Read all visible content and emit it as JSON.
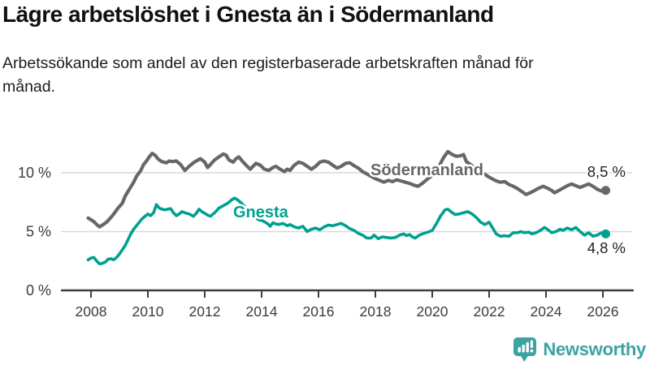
{
  "header": {
    "title": "Lägre arbetslöshet i Gnesta än i Södermanland",
    "subtitle": "Arbetssökande som andel av den registerbaserade arbetskraften månad för månad."
  },
  "footer": {
    "brand": "Newsworthy"
  },
  "colors": {
    "gnesta": "#00A091",
    "sodermanland": "#67676B",
    "grid": "#D9D9D9",
    "axis": "#3D3D3F",
    "tick_label": "#3C3C3C",
    "value_label": "#222222",
    "brand_teal": "#3BA3A0"
  },
  "chart_data": {
    "type": "line",
    "title": "Lägre arbetslöshet i Gnesta än i Södermanland",
    "subtitle": "Arbetssökande som andel av den registerbaserade arbetskraften månad för månad.",
    "legend": "inline-labels",
    "grid": "horizontal",
    "xlim": [
      2007.85,
      2026.35
    ],
    "ylim": [
      0,
      12.5
    ],
    "x_ticks": [
      2008,
      2010,
      2012,
      2014,
      2016,
      2018,
      2020,
      2022,
      2024,
      2026
    ],
    "y_ticks": [
      {
        "value": 0,
        "label": "0 %"
      },
      {
        "value": 5,
        "label": "5 %"
      },
      {
        "value": 10,
        "label": "10 %"
      }
    ],
    "series": [
      {
        "name": "Gnesta",
        "color": "#00A091",
        "end_value": 4.8,
        "end_label": "4,8 %",
        "points": [
          [
            2007.9,
            2.6
          ],
          [
            2008.0,
            2.75
          ],
          [
            2008.1,
            2.8
          ],
          [
            2008.2,
            2.5
          ],
          [
            2008.3,
            2.25
          ],
          [
            2008.4,
            2.3
          ],
          [
            2008.5,
            2.4
          ],
          [
            2008.6,
            2.65
          ],
          [
            2008.7,
            2.7
          ],
          [
            2008.8,
            2.6
          ],
          [
            2008.9,
            2.8
          ],
          [
            2009.0,
            3.1
          ],
          [
            2009.1,
            3.45
          ],
          [
            2009.2,
            3.8
          ],
          [
            2009.3,
            4.3
          ],
          [
            2009.4,
            4.8
          ],
          [
            2009.5,
            5.2
          ],
          [
            2009.6,
            5.5
          ],
          [
            2009.7,
            5.8
          ],
          [
            2009.8,
            6.1
          ],
          [
            2009.9,
            6.3
          ],
          [
            2010.0,
            6.5
          ],
          [
            2010.1,
            6.35
          ],
          [
            2010.2,
            6.6
          ],
          [
            2010.3,
            7.3
          ],
          [
            2010.4,
            7.0
          ],
          [
            2010.5,
            6.9
          ],
          [
            2010.6,
            6.85
          ],
          [
            2010.7,
            6.9
          ],
          [
            2010.8,
            6.95
          ],
          [
            2010.9,
            6.6
          ],
          [
            2011.0,
            6.35
          ],
          [
            2011.1,
            6.5
          ],
          [
            2011.2,
            6.7
          ],
          [
            2011.3,
            6.6
          ],
          [
            2011.45,
            6.5
          ],
          [
            2011.6,
            6.3
          ],
          [
            2011.7,
            6.55
          ],
          [
            2011.8,
            6.9
          ],
          [
            2011.9,
            6.7
          ],
          [
            2012.0,
            6.55
          ],
          [
            2012.1,
            6.4
          ],
          [
            2012.2,
            6.3
          ],
          [
            2012.35,
            6.6
          ],
          [
            2012.5,
            7.0
          ],
          [
            2012.65,
            7.2
          ],
          [
            2012.8,
            7.4
          ],
          [
            2012.95,
            7.7
          ],
          [
            2013.05,
            7.85
          ],
          [
            2013.15,
            7.7
          ],
          [
            2013.3,
            7.4
          ],
          [
            2013.45,
            7.0
          ],
          [
            2013.6,
            6.6
          ],
          [
            2013.75,
            6.25
          ],
          [
            2013.9,
            6.0
          ],
          [
            2014.05,
            5.9
          ],
          [
            2014.2,
            5.7
          ],
          [
            2014.3,
            5.45
          ],
          [
            2014.4,
            5.75
          ],
          [
            2014.5,
            5.65
          ],
          [
            2014.6,
            5.6
          ],
          [
            2014.75,
            5.7
          ],
          [
            2014.9,
            5.5
          ],
          [
            2015.0,
            5.6
          ],
          [
            2015.15,
            5.4
          ],
          [
            2015.3,
            5.3
          ],
          [
            2015.45,
            5.45
          ],
          [
            2015.6,
            5.0
          ],
          [
            2015.75,
            5.2
          ],
          [
            2015.9,
            5.3
          ],
          [
            2016.05,
            5.15
          ],
          [
            2016.2,
            5.4
          ],
          [
            2016.35,
            5.55
          ],
          [
            2016.5,
            5.5
          ],
          [
            2016.65,
            5.6
          ],
          [
            2016.8,
            5.7
          ],
          [
            2016.95,
            5.5
          ],
          [
            2017.1,
            5.25
          ],
          [
            2017.25,
            5.1
          ],
          [
            2017.4,
            4.85
          ],
          [
            2017.55,
            4.7
          ],
          [
            2017.7,
            4.45
          ],
          [
            2017.85,
            4.45
          ],
          [
            2017.95,
            4.7
          ],
          [
            2018.1,
            4.4
          ],
          [
            2018.25,
            4.55
          ],
          [
            2018.4,
            4.5
          ],
          [
            2018.55,
            4.45
          ],
          [
            2018.7,
            4.5
          ],
          [
            2018.85,
            4.7
          ],
          [
            2019.0,
            4.8
          ],
          [
            2019.1,
            4.65
          ],
          [
            2019.2,
            4.75
          ],
          [
            2019.3,
            4.55
          ],
          [
            2019.4,
            4.45
          ],
          [
            2019.55,
            4.7
          ],
          [
            2019.7,
            4.85
          ],
          [
            2019.85,
            4.95
          ],
          [
            2020.0,
            5.1
          ],
          [
            2020.15,
            5.7
          ],
          [
            2020.3,
            6.35
          ],
          [
            2020.45,
            6.85
          ],
          [
            2020.55,
            6.9
          ],
          [
            2020.65,
            6.7
          ],
          [
            2020.8,
            6.45
          ],
          [
            2020.95,
            6.5
          ],
          [
            2021.1,
            6.6
          ],
          [
            2021.25,
            6.7
          ],
          [
            2021.4,
            6.5
          ],
          [
            2021.55,
            6.2
          ],
          [
            2021.7,
            5.8
          ],
          [
            2021.85,
            5.6
          ],
          [
            2022.0,
            5.8
          ],
          [
            2022.1,
            5.4
          ],
          [
            2022.25,
            4.8
          ],
          [
            2022.4,
            4.6
          ],
          [
            2022.55,
            4.65
          ],
          [
            2022.7,
            4.6
          ],
          [
            2022.85,
            4.9
          ],
          [
            2023.0,
            4.9
          ],
          [
            2023.1,
            5.0
          ],
          [
            2023.25,
            4.9
          ],
          [
            2023.4,
            4.95
          ],
          [
            2023.5,
            4.8
          ],
          [
            2023.65,
            4.9
          ],
          [
            2023.8,
            5.1
          ],
          [
            2023.95,
            5.35
          ],
          [
            2024.1,
            5.1
          ],
          [
            2024.2,
            4.9
          ],
          [
            2024.35,
            5.0
          ],
          [
            2024.5,
            5.2
          ],
          [
            2024.6,
            5.1
          ],
          [
            2024.75,
            5.3
          ],
          [
            2024.9,
            5.15
          ],
          [
            2025.05,
            5.35
          ],
          [
            2025.2,
            5.0
          ],
          [
            2025.35,
            4.7
          ],
          [
            2025.5,
            4.9
          ],
          [
            2025.65,
            4.6
          ],
          [
            2025.8,
            4.7
          ],
          [
            2025.95,
            4.9
          ],
          [
            2026.1,
            4.8
          ]
        ]
      },
      {
        "name": "Södermanland",
        "color": "#67676B",
        "end_value": 8.5,
        "end_label": "8,5 %",
        "points": [
          [
            2007.9,
            6.15
          ],
          [
            2008.0,
            6.0
          ],
          [
            2008.1,
            5.85
          ],
          [
            2008.2,
            5.6
          ],
          [
            2008.3,
            5.4
          ],
          [
            2008.4,
            5.55
          ],
          [
            2008.55,
            5.8
          ],
          [
            2008.7,
            6.2
          ],
          [
            2008.8,
            6.5
          ],
          [
            2008.95,
            7.0
          ],
          [
            2009.1,
            7.4
          ],
          [
            2009.2,
            8.0
          ],
          [
            2009.35,
            8.6
          ],
          [
            2009.5,
            9.2
          ],
          [
            2009.6,
            9.7
          ],
          [
            2009.75,
            10.2
          ],
          [
            2009.85,
            10.7
          ],
          [
            2009.95,
            11.0
          ],
          [
            2010.05,
            11.35
          ],
          [
            2010.15,
            11.65
          ],
          [
            2010.25,
            11.5
          ],
          [
            2010.35,
            11.2
          ],
          [
            2010.45,
            11.0
          ],
          [
            2010.55,
            10.9
          ],
          [
            2010.65,
            10.85
          ],
          [
            2010.75,
            11.0
          ],
          [
            2010.85,
            10.95
          ],
          [
            2011.0,
            11.0
          ],
          [
            2011.15,
            10.7
          ],
          [
            2011.3,
            10.2
          ],
          [
            2011.45,
            10.55
          ],
          [
            2011.6,
            10.85
          ],
          [
            2011.7,
            11.0
          ],
          [
            2011.85,
            11.2
          ],
          [
            2012.0,
            10.9
          ],
          [
            2012.1,
            10.45
          ],
          [
            2012.2,
            10.7
          ],
          [
            2012.35,
            11.1
          ],
          [
            2012.5,
            11.35
          ],
          [
            2012.65,
            11.6
          ],
          [
            2012.75,
            11.5
          ],
          [
            2012.85,
            11.1
          ],
          [
            2013.0,
            10.9
          ],
          [
            2013.1,
            11.2
          ],
          [
            2013.2,
            11.35
          ],
          [
            2013.3,
            11.05
          ],
          [
            2013.45,
            10.65
          ],
          [
            2013.6,
            10.3
          ],
          [
            2013.7,
            10.55
          ],
          [
            2013.8,
            10.8
          ],
          [
            2013.95,
            10.65
          ],
          [
            2014.1,
            10.3
          ],
          [
            2014.25,
            10.2
          ],
          [
            2014.4,
            10.45
          ],
          [
            2014.5,
            10.55
          ],
          [
            2014.65,
            10.3
          ],
          [
            2014.8,
            10.1
          ],
          [
            2014.9,
            10.3
          ],
          [
            2015.0,
            10.2
          ],
          [
            2015.15,
            10.65
          ],
          [
            2015.3,
            10.9
          ],
          [
            2015.45,
            10.8
          ],
          [
            2015.6,
            10.55
          ],
          [
            2015.75,
            10.3
          ],
          [
            2015.9,
            10.55
          ],
          [
            2016.05,
            10.9
          ],
          [
            2016.2,
            11.0
          ],
          [
            2016.35,
            10.9
          ],
          [
            2016.5,
            10.65
          ],
          [
            2016.65,
            10.4
          ],
          [
            2016.8,
            10.55
          ],
          [
            2016.95,
            10.8
          ],
          [
            2017.1,
            10.85
          ],
          [
            2017.25,
            10.6
          ],
          [
            2017.4,
            10.4
          ],
          [
            2017.55,
            10.1
          ],
          [
            2017.7,
            9.9
          ],
          [
            2017.85,
            9.7
          ],
          [
            2018.0,
            9.5
          ],
          [
            2018.15,
            9.35
          ],
          [
            2018.3,
            9.2
          ],
          [
            2018.45,
            9.35
          ],
          [
            2018.6,
            9.25
          ],
          [
            2018.75,
            9.4
          ],
          [
            2018.9,
            9.3
          ],
          [
            2019.05,
            9.2
          ],
          [
            2019.2,
            9.1
          ],
          [
            2019.35,
            8.95
          ],
          [
            2019.5,
            8.85
          ],
          [
            2019.65,
            9.1
          ],
          [
            2019.8,
            9.4
          ],
          [
            2019.95,
            9.7
          ],
          [
            2020.1,
            10.1
          ],
          [
            2020.25,
            10.6
          ],
          [
            2020.4,
            11.3
          ],
          [
            2020.55,
            11.8
          ],
          [
            2020.7,
            11.55
          ],
          [
            2020.85,
            11.4
          ],
          [
            2021.0,
            11.45
          ],
          [
            2021.1,
            11.55
          ],
          [
            2021.2,
            10.95
          ],
          [
            2021.35,
            10.7
          ],
          [
            2021.5,
            10.4
          ],
          [
            2021.65,
            10.15
          ],
          [
            2021.8,
            9.95
          ],
          [
            2021.95,
            9.7
          ],
          [
            2022.1,
            9.5
          ],
          [
            2022.25,
            9.3
          ],
          [
            2022.4,
            9.2
          ],
          [
            2022.55,
            9.25
          ],
          [
            2022.7,
            9.0
          ],
          [
            2022.85,
            8.85
          ],
          [
            2023.0,
            8.65
          ],
          [
            2023.15,
            8.4
          ],
          [
            2023.3,
            8.15
          ],
          [
            2023.45,
            8.3
          ],
          [
            2023.6,
            8.5
          ],
          [
            2023.75,
            8.7
          ],
          [
            2023.9,
            8.85
          ],
          [
            2024.05,
            8.7
          ],
          [
            2024.2,
            8.5
          ],
          [
            2024.3,
            8.3
          ],
          [
            2024.45,
            8.5
          ],
          [
            2024.6,
            8.7
          ],
          [
            2024.75,
            8.9
          ],
          [
            2024.9,
            9.05
          ],
          [
            2025.05,
            8.9
          ],
          [
            2025.2,
            8.75
          ],
          [
            2025.35,
            8.9
          ],
          [
            2025.5,
            9.05
          ],
          [
            2025.65,
            8.85
          ],
          [
            2025.8,
            8.6
          ],
          [
            2025.95,
            8.45
          ],
          [
            2026.1,
            8.5
          ]
        ]
      }
    ]
  }
}
